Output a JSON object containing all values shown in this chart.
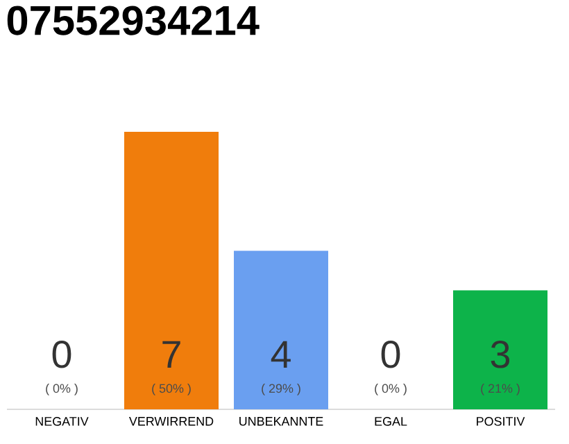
{
  "chart_data": {
    "type": "bar",
    "title": "07552934214",
    "categories": [
      "NEGATIV",
      "VERWIRREND",
      "UNBEKANNTE",
      "EGAL",
      "POSITIV"
    ],
    "values": [
      0,
      7,
      4,
      0,
      3
    ],
    "colors": [
      "#eeeeee",
      "#f07d0c",
      "#6a9ff0",
      "#eeeeee",
      "#0db34a"
    ],
    "data_labels": true,
    "annotations": [
      {
        "text": "( 0% )",
        "x": "NEGATIV",
        "y": 0
      },
      {
        "text": "( 50% )",
        "x": "VERWIRREND",
        "y": 0
      },
      {
        "text": "( 29% )",
        "x": "UNBEKANNTE",
        "y": 0
      },
      {
        "text": "( 0% )",
        "x": "EGAL",
        "y": 0
      },
      {
        "text": "( 21% )",
        "x": "POSITIV",
        "y": 0
      }
    ],
    "tick_labels": "x"
  }
}
